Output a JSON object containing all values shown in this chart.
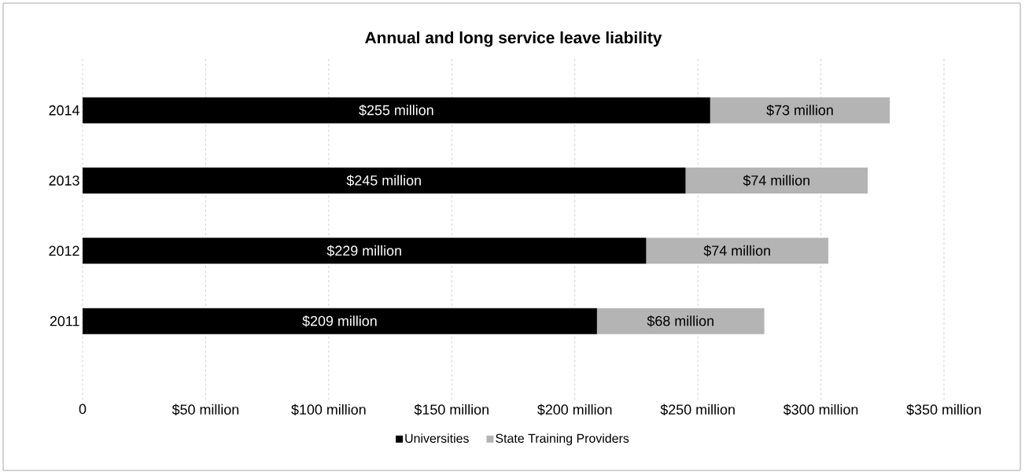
{
  "chart_data": {
    "type": "bar",
    "orientation": "horizontal",
    "stacked": true,
    "title": "Annual and long service leave liability",
    "categories": [
      "2014",
      "2013",
      "2012",
      "2011"
    ],
    "series": [
      {
        "name": "Universities",
        "color": "#000000",
        "values": [
          255,
          245,
          229,
          209
        ],
        "value_labels": [
          "$255 million",
          "$245 million",
          "$229 million",
          "$209 million"
        ]
      },
      {
        "name": "State Training Providers",
        "color": "#b4b4b4",
        "values": [
          73,
          74,
          74,
          68
        ],
        "value_labels": [
          "$73 million",
          "$74 million",
          "$74 million",
          "$68 million"
        ]
      }
    ],
    "xlim": [
      0,
      350
    ],
    "xticks": [
      0,
      {
        "value": 50,
        "label": "$50 million"
      },
      {
        "value": 100,
        "label": "$100 million"
      },
      {
        "value": 150,
        "label": "$150 million"
      },
      {
        "value": 200,
        "label": "$200 million"
      },
      {
        "value": 250,
        "label": "$250 million"
      },
      {
        "value": 300,
        "label": "$300 million"
      },
      {
        "value": 350,
        "label": "$350 million"
      }
    ],
    "grid": "x",
    "legend": "bottom"
  }
}
